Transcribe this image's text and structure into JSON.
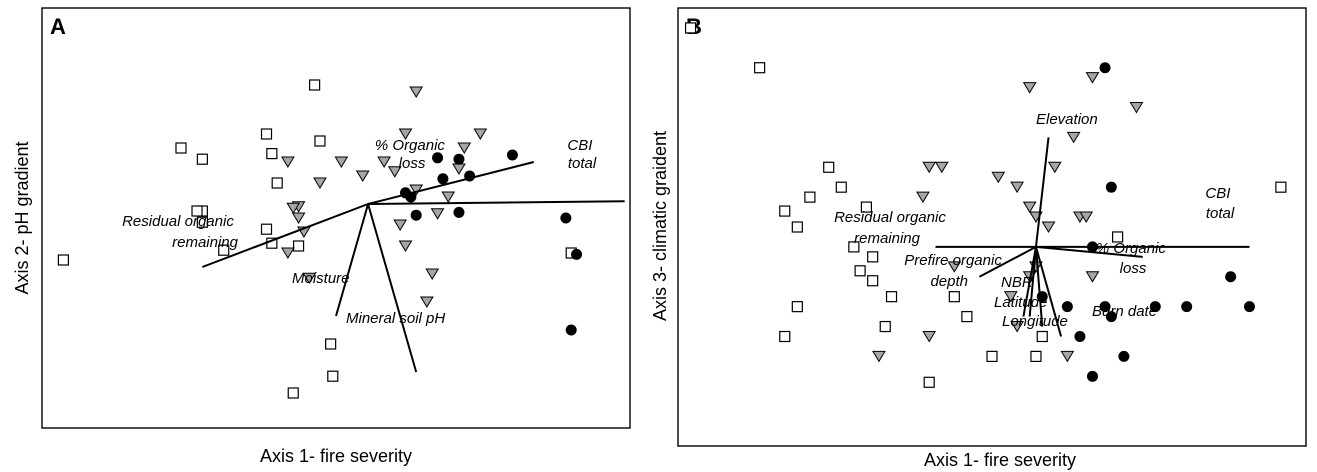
{
  "chart_data": [
    {
      "type": "scatter",
      "panel": "A",
      "xlabel": "Axis 1- fire severity",
      "ylabel": "Axis 2- pH gradient",
      "origin": [
        0.05,
        0.1
      ],
      "open_squares": [
        [
          -2.8,
          -0.3
        ],
        [
          -1.7,
          0.5
        ],
        [
          -1.5,
          0.42
        ],
        [
          -1.5,
          0.05
        ],
        [
          -1.5,
          -0.03
        ],
        [
          -1.55,
          0.05
        ],
        [
          -1.3,
          -0.23
        ],
        [
          -0.9,
          0.6
        ],
        [
          -0.85,
          0.46
        ],
        [
          -0.8,
          0.25
        ],
        [
          -0.85,
          -0.18
        ],
        [
          -0.9,
          -0.08
        ],
        [
          -0.6,
          -0.2
        ],
        [
          -0.4,
          0.55
        ],
        [
          -0.45,
          0.95
        ],
        [
          -0.28,
          -1.13
        ],
        [
          -0.3,
          -0.9
        ],
        [
          -0.65,
          -1.25
        ],
        [
          1.95,
          -0.25
        ]
      ],
      "triangles": [
        [
          -0.7,
          0.4
        ],
        [
          -0.4,
          0.25
        ],
        [
          -0.6,
          0.08
        ],
        [
          -0.5,
          -0.43
        ],
        [
          -0.2,
          0.4
        ],
        [
          0.0,
          0.3
        ],
        [
          0.2,
          0.4
        ],
        [
          0.3,
          0.33
        ],
        [
          0.4,
          0.6
        ],
        [
          0.5,
          0.9
        ],
        [
          1.1,
          0.6
        ],
        [
          0.7,
          0.03
        ],
        [
          0.8,
          0.15
        ],
        [
          0.9,
          0.35
        ],
        [
          0.95,
          0.5
        ],
        [
          0.6,
          -0.6
        ],
        [
          0.65,
          -0.4
        ],
        [
          0.5,
          0.2
        ],
        [
          0.4,
          -0.2
        ],
        [
          0.35,
          -0.05
        ],
        [
          -0.7,
          -0.25
        ],
        [
          -0.65,
          0.07
        ],
        [
          -0.6,
          0.0
        ],
        [
          -0.55,
          -0.1
        ]
      ],
      "filled_circles": [
        [
          0.4,
          0.18
        ],
        [
          0.7,
          0.43
        ],
        [
          0.75,
          0.28
        ],
        [
          0.45,
          0.15
        ],
        [
          0.5,
          0.02
        ],
        [
          0.9,
          0.04
        ],
        [
          0.9,
          0.42
        ],
        [
          1.0,
          0.3
        ],
        [
          1.4,
          0.45
        ],
        [
          1.9,
          0.0
        ],
        [
          2.0,
          -0.26
        ],
        [
          1.95,
          -0.8
        ]
      ],
      "vectors": [
        {
          "label": "CBI total",
          "end": [
            2.45,
            0.12
          ]
        },
        {
          "label": "% Organic loss",
          "end": [
            1.6,
            0.4
          ]
        },
        {
          "label": "Residual organic remaining",
          "end": [
            -1.5,
            -0.35
          ]
        },
        {
          "label": "Moisture",
          "end": [
            -0.25,
            -0.7
          ]
        },
        {
          "label": "Mineral soil pH",
          "end": [
            0.5,
            -1.1
          ]
        }
      ],
      "xlim": [
        -3.0,
        2.5
      ],
      "ylim": [
        -1.5,
        1.5
      ]
    },
    {
      "type": "scatter",
      "panel": "B",
      "xlabel": "Axis 1- fire severity",
      "ylabel": "Axis 3- climatic graident",
      "origin": [
        0.35,
        0.0
      ],
      "open_squares": [
        [
          -2.4,
          1.1
        ],
        [
          -1.85,
          0.9
        ],
        [
          -1.45,
          0.25
        ],
        [
          -1.65,
          0.18
        ],
        [
          -1.55,
          0.1
        ],
        [
          -1.2,
          0.3
        ],
        [
          -1.0,
          0.2
        ],
        [
          -1.1,
          0.0
        ],
        [
          -0.95,
          -0.05
        ],
        [
          -1.05,
          -0.12
        ],
        [
          -0.95,
          -0.17
        ],
        [
          -0.8,
          -0.25
        ],
        [
          -0.85,
          -0.4
        ],
        [
          -0.5,
          -0.68
        ],
        [
          -0.3,
          -0.25
        ],
        [
          -0.2,
          -0.35
        ],
        [
          0.0,
          -0.55
        ],
        [
          0.35,
          -0.55
        ],
        [
          -1.55,
          -0.3
        ],
        [
          -1.65,
          -0.45
        ],
        [
          -1.3,
          0.4
        ],
        [
          0.4,
          -0.45
        ],
        [
          1.0,
          0.05
        ],
        [
          2.3,
          0.3
        ]
      ],
      "triangles": [
        [
          -0.5,
          0.4
        ],
        [
          -0.4,
          0.4
        ],
        [
          0.05,
          0.35
        ],
        [
          0.3,
          0.8
        ],
        [
          0.8,
          0.85
        ],
        [
          0.5,
          0.4
        ],
        [
          0.35,
          0.15
        ],
        [
          0.2,
          0.3
        ],
        [
          0.65,
          0.55
        ],
        [
          0.7,
          0.15
        ],
        [
          1.15,
          0.7
        ],
        [
          0.3,
          0.2
        ],
        [
          0.45,
          0.1
        ],
        [
          0.75,
          0.15
        ],
        [
          0.35,
          -0.1
        ],
        [
          0.15,
          -0.25
        ],
        [
          -0.3,
          -0.1
        ],
        [
          0.2,
          -0.4
        ],
        [
          0.6,
          -0.55
        ],
        [
          0.3,
          -0.15
        ],
        [
          0.8,
          -0.15
        ],
        [
          -0.55,
          0.25
        ],
        [
          -0.5,
          -0.45
        ],
        [
          -0.9,
          -0.55
        ]
      ],
      "filled_circles": [
        [
          0.9,
          0.9
        ],
        [
          0.95,
          0.3
        ],
        [
          0.8,
          0.0
        ],
        [
          0.4,
          -0.25
        ],
        [
          0.6,
          -0.3
        ],
        [
          0.7,
          -0.45
        ],
        [
          0.9,
          -0.3
        ],
        [
          0.95,
          -0.35
        ],
        [
          1.05,
          -0.55
        ],
        [
          1.3,
          -0.3
        ],
        [
          1.55,
          -0.3
        ],
        [
          1.9,
          -0.15
        ],
        [
          2.05,
          -0.3
        ],
        [
          0.8,
          -0.65
        ]
      ],
      "vectors": [
        {
          "label": "Elevation",
          "end": [
            0.45,
            0.55
          ]
        },
        {
          "label": "CBI total",
          "end": [
            2.05,
            0.0
          ]
        },
        {
          "label": "Residual organic remaining",
          "end": [
            -0.45,
            0.0
          ]
        },
        {
          "label": "Prefire organic depth",
          "end": [
            -0.1,
            -0.15
          ]
        },
        {
          "label": "% Organic loss",
          "end": [
            1.2,
            -0.05
          ]
        },
        {
          "label": "NBR",
          "end": [
            0.25,
            -0.35
          ]
        },
        {
          "label": "Latitude",
          "end": [
            0.3,
            -0.35
          ]
        },
        {
          "label": "Longitude",
          "end": [
            0.4,
            -0.4
          ]
        },
        {
          "label": "Burn date",
          "end": [
            0.55,
            -0.45
          ]
        }
      ],
      "xlim": [
        -2.5,
        2.5
      ],
      "ylim": [
        -1.0,
        1.2
      ]
    }
  ],
  "panels": [
    {
      "letter": "A",
      "xlabel": "Axis 1- fire severity",
      "ylabel": "Axis 2- pH gradient",
      "vector_labels": [
        {
          "lines": [
            "% Organic",
            "loss"
          ]
        },
        {
          "lines": [
            "CBI",
            "total"
          ]
        },
        {
          "lines": [
            "Residual organic",
            "remaining"
          ]
        },
        {
          "lines": [
            "Moisture"
          ]
        },
        {
          "lines": [
            "Mineral soil pH"
          ]
        }
      ]
    },
    {
      "letter": "B",
      "xlabel": "Axis 1- fire severity",
      "ylabel": "Axis 3- climatic graident",
      "vector_labels": [
        {
          "lines": [
            "Elevation"
          ]
        },
        {
          "lines": [
            "CBI",
            "total"
          ]
        },
        {
          "lines": [
            "Residual organic",
            "remaining"
          ]
        },
        {
          "lines": [
            "Prefire organic",
            "depth"
          ]
        },
        {
          "lines": [
            "% Organic",
            "loss"
          ]
        },
        {
          "lines": [
            "NBR"
          ]
        },
        {
          "lines": [
            "Latitude"
          ]
        },
        {
          "lines": [
            "Longitude"
          ]
        },
        {
          "lines": [
            "Burn date"
          ]
        }
      ]
    }
  ]
}
